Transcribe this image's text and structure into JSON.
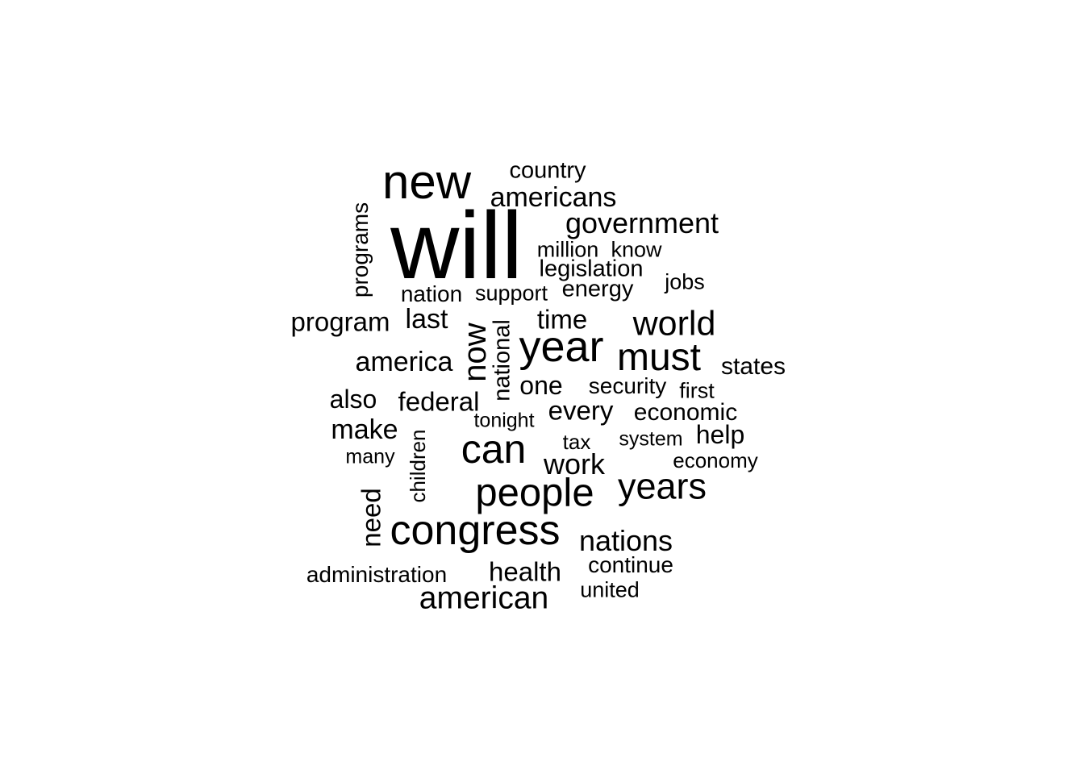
{
  "text_color": "#000000",
  "background": "#ffffff",
  "words": [
    {
      "text": "will",
      "weight": 1.0
    },
    {
      "text": "new",
      "weight": 0.52
    },
    {
      "text": "year",
      "weight": 0.47
    },
    {
      "text": "congress",
      "weight": 0.46
    },
    {
      "text": "can",
      "weight": 0.44
    },
    {
      "text": "people",
      "weight": 0.43
    },
    {
      "text": "must",
      "weight": 0.42
    },
    {
      "text": "years",
      "weight": 0.4
    },
    {
      "text": "world",
      "weight": 0.38
    },
    {
      "text": "now",
      "weight": 0.36
    },
    {
      "text": "american",
      "weight": 0.34
    },
    {
      "text": "government",
      "weight": 0.32
    },
    {
      "text": "nations",
      "weight": 0.32
    },
    {
      "text": "work",
      "weight": 0.32
    },
    {
      "text": "americans",
      "weight": 0.3
    },
    {
      "text": "america",
      "weight": 0.3
    },
    {
      "text": "last",
      "weight": 0.3
    },
    {
      "text": "make",
      "weight": 0.3
    },
    {
      "text": "federal",
      "weight": 0.29
    },
    {
      "text": "every",
      "weight": 0.29
    },
    {
      "text": "health",
      "weight": 0.29
    },
    {
      "text": "need",
      "weight": 0.29
    },
    {
      "text": "time",
      "weight": 0.29
    },
    {
      "text": "program",
      "weight": 0.29
    },
    {
      "text": "also",
      "weight": 0.28
    },
    {
      "text": "one",
      "weight": 0.28
    },
    {
      "text": "help",
      "weight": 0.28
    },
    {
      "text": "economic",
      "weight": 0.27
    },
    {
      "text": "states",
      "weight": 0.26
    },
    {
      "text": "country",
      "weight": 0.26
    },
    {
      "text": "energy",
      "weight": 0.26
    },
    {
      "text": "legislation",
      "weight": 0.26
    },
    {
      "text": "national",
      "weight": 0.26
    },
    {
      "text": "programs",
      "weight": 0.25
    },
    {
      "text": "security",
      "weight": 0.25
    },
    {
      "text": "nation",
      "weight": 0.25
    },
    {
      "text": "administration",
      "weight": 0.25
    },
    {
      "text": "continue",
      "weight": 0.25
    },
    {
      "text": "first",
      "weight": 0.24
    },
    {
      "text": "jobs",
      "weight": 0.24
    },
    {
      "text": "know",
      "weight": 0.24
    },
    {
      "text": "million",
      "weight": 0.24
    },
    {
      "text": "support",
      "weight": 0.24
    },
    {
      "text": "united",
      "weight": 0.24
    },
    {
      "text": "children",
      "weight": 0.23
    },
    {
      "text": "economy",
      "weight": 0.23
    },
    {
      "text": "tax",
      "weight": 0.23
    },
    {
      "text": "system",
      "weight": 0.22
    },
    {
      "text": "many",
      "weight": 0.22
    },
    {
      "text": "tonight",
      "weight": 0.22
    }
  ]
}
